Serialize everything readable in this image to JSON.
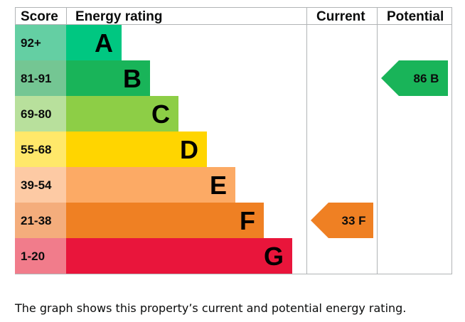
{
  "headers": {
    "score": "Score",
    "rating": "Energy rating",
    "current": "Current",
    "potential": "Potential"
  },
  "chart_data": {
    "type": "bar",
    "bands": [
      {
        "letter": "A",
        "range": "92+",
        "color": "#00c781",
        "score_color": "#64cfa3"
      },
      {
        "letter": "B",
        "range": "81-91",
        "color": "#19b459",
        "score_color": "#74c693"
      },
      {
        "letter": "C",
        "range": "69-80",
        "color": "#8dce46",
        "score_color": "#b8e09c"
      },
      {
        "letter": "D",
        "range": "55-68",
        "color": "#ffd500",
        "score_color": "#ffe86a"
      },
      {
        "letter": "E",
        "range": "39-54",
        "color": "#fcaa65",
        "score_color": "#fdcaa4"
      },
      {
        "letter": "F",
        "range": "21-38",
        "color": "#ef8023",
        "score_color": "#f4ad7c"
      },
      {
        "letter": "G",
        "range": "1-20",
        "color": "#e9153b",
        "score_color": "#f17c8b"
      }
    ],
    "current": {
      "value": 33,
      "letter": "F",
      "label": "33 F",
      "color": "#ef8023"
    },
    "potential": {
      "value": 86,
      "letter": "B",
      "label": "86 B",
      "color": "#19b459"
    }
  },
  "caption": "The graph shows this property’s current and potential energy rating."
}
